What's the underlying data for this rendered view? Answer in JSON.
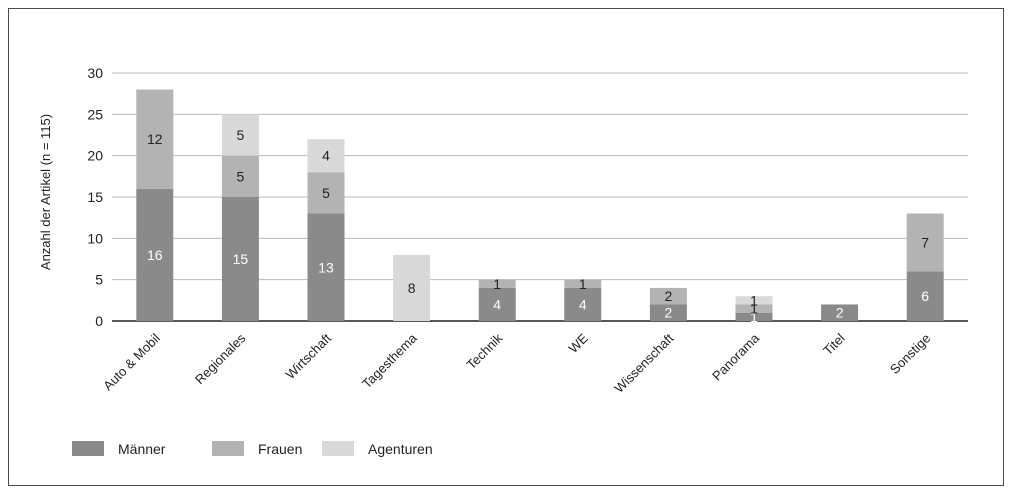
{
  "chart_data": {
    "type": "bar",
    "stacked": true,
    "ylabel": "Anzahl der Artikel (n = 115)",
    "ylim": [
      0,
      30
    ],
    "yticks": [
      0,
      5,
      10,
      15,
      20,
      25,
      30
    ],
    "grid": true,
    "legend_position": "bottom-left",
    "categories": [
      "Auto & Mobil",
      "Regionales",
      "Wirtschaft",
      "Tagesthema",
      "Technik",
      "WE",
      "Wissenschaft",
      "Panorama",
      "Titel",
      "Sonstige"
    ],
    "series": [
      {
        "name": "Männer",
        "color": "#8a8a8a",
        "label_color": "#ffffff",
        "values": [
          16,
          15,
          13,
          0,
          4,
          4,
          2,
          1,
          2,
          6
        ]
      },
      {
        "name": "Frauen",
        "color": "#b3b3b3",
        "label_color": "#222222",
        "values": [
          12,
          5,
          5,
          0,
          1,
          1,
          2,
          1,
          0,
          7
        ]
      },
      {
        "name": "Agenturen",
        "color": "#d9d9d9",
        "label_color": "#222222",
        "values": [
          0,
          5,
          4,
          8,
          0,
          0,
          0,
          1,
          0,
          0
        ]
      }
    ]
  }
}
